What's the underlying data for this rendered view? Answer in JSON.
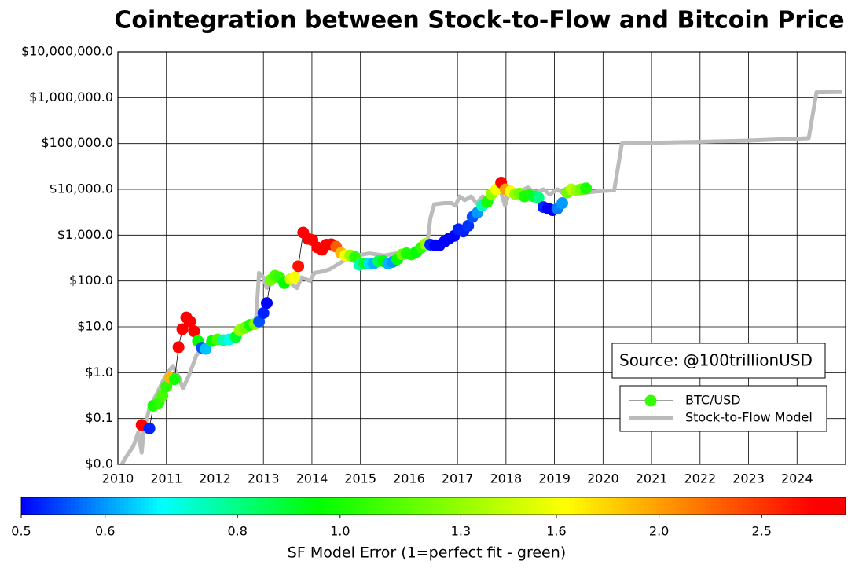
{
  "chart_data": {
    "type": "scatter",
    "title": "Cointegration between Stock-to-Flow and Bitcoin Price",
    "annotation": "Source: @100trillionUSD",
    "ylog": true,
    "grid": true,
    "legend": "lower right",
    "xlim": [
      2010,
      2025
    ],
    "xticks": [
      2010,
      2011,
      2012,
      2013,
      2014,
      2015,
      2016,
      2017,
      2018,
      2019,
      2020,
      2021,
      2022,
      2023,
      2024
    ],
    "ylim": [
      0.01,
      10000000
    ],
    "yticks": [
      {
        "value": 0.01,
        "label": "$0.0"
      },
      {
        "value": 0.1,
        "label": "$0.1"
      },
      {
        "value": 1,
        "label": "$1.0"
      },
      {
        "value": 10,
        "label": "$10.0"
      },
      {
        "value": 100,
        "label": "$100.0"
      },
      {
        "value": 1000,
        "label": "$1,000.0"
      },
      {
        "value": 10000,
        "label": "$10,000.0"
      },
      {
        "value": 100000,
        "label": "$100,000.0"
      },
      {
        "value": 1000000,
        "label": "$1,000,000.0"
      },
      {
        "value": 10000000,
        "label": "$10,000,000.0"
      }
    ],
    "colorbar": {
      "label": "SF Model Error (1=perfect fit - green)",
      "log": true,
      "lim": [
        0.5,
        3.0
      ],
      "ticks": [
        0.5,
        0.6,
        0.8,
        {
          "value": 1,
          "label": "1.0"
        },
        1.3,
        1.6,
        {
          "value": 2,
          "label": "2.0"
        },
        2.5
      ],
      "colors": [
        "#0000ff",
        "#00ffff",
        "#00ff00",
        "#ffff00",
        "#ff0000"
      ]
    },
    "series": [
      {
        "name": "BTC/USD",
        "color": "#000000",
        "x": [
          2010.49,
          2010.65,
          2010.73,
          2010.84,
          2010.92,
          2011.0,
          2011.08,
          2011.17,
          2011.25,
          2011.33,
          2011.41,
          2011.49,
          2011.57,
          2011.65,
          2011.73,
          2011.81,
          2011.94,
          2012.05,
          2012.18,
          2012.3,
          2012.43,
          2012.51,
          2012.62,
          2012.72,
          2012.82,
          2012.91,
          2013.0,
          2013.07,
          2013.15,
          2013.24,
          2013.33,
          2013.43,
          2013.56,
          2013.64,
          2013.72,
          2013.82,
          2013.92,
          2014.01,
          2014.11,
          2014.21,
          2014.3,
          2014.4,
          2014.5,
          2014.6,
          2014.69,
          2014.79,
          2014.89,
          2014.98,
          2015.08,
          2015.18,
          2015.27,
          2015.37,
          2015.47,
          2015.57,
          2015.66,
          2015.76,
          2015.86,
          2015.95,
          2016.05,
          2016.15,
          2016.25,
          2016.34,
          2016.44,
          2016.54,
          2016.63,
          2016.73,
          2016.83,
          2016.93,
          2017.02,
          2017.12,
          2017.22,
          2017.31,
          2017.41,
          2017.51,
          2017.61,
          2017.7,
          2017.8,
          2017.9,
          2017.99,
          2018.09,
          2018.19,
          2018.28,
          2018.38,
          2018.48,
          2018.58,
          2018.67,
          2018.77,
          2018.87,
          2018.96,
          2019.06,
          2019.16,
          2019.26,
          2019.35,
          2019.45,
          2019.55,
          2019.65
        ],
        "values": [
          0.072,
          0.061,
          0.19,
          0.22,
          0.32,
          0.5,
          0.77,
          0.72,
          3.6,
          8.9,
          16,
          13,
          8,
          4.9,
          3.5,
          3.3,
          4.9,
          5.3,
          5.1,
          5.3,
          6,
          8.4,
          9.5,
          11,
          11.5,
          13,
          20,
          33,
          105,
          130,
          120,
          90,
          110,
          120,
          210,
          1140,
          830,
          780,
          540,
          480,
          620,
          630,
          560,
          410,
          360,
          360,
          330,
          225,
          240,
          240,
          240,
          270,
          270,
          240,
          260,
          300,
          380,
          400,
          380,
          430,
          530,
          640,
          620,
          600,
          600,
          720,
          850,
          960,
          1340,
          1200,
          1600,
          2500,
          3100,
          4400,
          5300,
          7900,
          10000,
          14000,
          10000,
          9000,
          7900,
          8100,
          7000,
          7500,
          7000,
          6600,
          4100,
          3800,
          3500,
          3800,
          5000,
          8500,
          10000,
          9500,
          10000,
          10500
        ],
        "errors": [
          2.8,
          0.52,
          1.0,
          1.05,
          1.1,
          1.05,
          1.9,
          1.0,
          2.8,
          2.8,
          2.8,
          2.8,
          2.8,
          0.95,
          0.55,
          0.63,
          0.95,
          1.1,
          0.75,
          0.7,
          0.9,
          1.3,
          1.2,
          1.0,
          1.25,
          0.55,
          0.52,
          0.5,
          1.2,
          1.1,
          1.05,
          0.95,
          1.5,
          1.6,
          2.7,
          2.9,
          2.9,
          2.9,
          2.8,
          2.8,
          2.8,
          2.8,
          2.3,
          1.9,
          1.6,
          1.3,
          1.05,
          0.75,
          0.9,
          0.65,
          0.62,
          0.85,
          0.95,
          0.62,
          0.6,
          0.95,
          1.2,
          1.0,
          1.0,
          0.95,
          1.05,
          1.3,
          0.52,
          0.5,
          0.5,
          0.5,
          0.5,
          0.5,
          0.52,
          0.52,
          0.53,
          0.55,
          0.6,
          0.75,
          1.0,
          1.3,
          1.6,
          2.9,
          2.0,
          1.6,
          1.3,
          1.2,
          1.0,
          1.0,
          0.9,
          0.8,
          0.52,
          0.5,
          0.5,
          0.58,
          0.6,
          1.2,
          1.4,
          1.3,
          1.2,
          1.0
        ]
      },
      {
        "name": "Stock-to-Flow Model",
        "color": "#bbbbbb",
        "x": [
          2010.08,
          2010.16,
          2010.32,
          2010.42,
          2010.49,
          2010.53,
          2010.65,
          2010.81,
          2010.97,
          2011.13,
          2011.26,
          2011.34,
          2011.46,
          2011.62,
          2011.78,
          2011.94,
          2012.18,
          2012.43,
          2012.67,
          2012.85,
          2012.91,
          2013.0,
          2013.07,
          2013.24,
          2013.4,
          2013.56,
          2013.69,
          2013.79,
          2013.96,
          2014.05,
          2014.21,
          2014.37,
          2014.53,
          2014.69,
          2014.94,
          2015.18,
          2015.5,
          2015.74,
          2015.99,
          2016.23,
          2016.39,
          2016.44,
          2016.52,
          2016.72,
          2016.88,
          2016.96,
          2017.04,
          2017.15,
          2017.28,
          2017.39,
          2017.52,
          2017.69,
          2017.85,
          2017.98,
          2018.09,
          2018.25,
          2018.45,
          2018.58,
          2018.77,
          2018.9,
          2019.06,
          2019.22,
          2019.39,
          2019.55,
          2019.87,
          2020.23,
          2020.39,
          2021.33,
          2022.94,
          2024.24,
          2024.4,
          2024.92
        ],
        "values": [
          0.01,
          0.014,
          0.025,
          0.05,
          0.018,
          0.05,
          0.17,
          0.36,
          0.8,
          1.4,
          0.8,
          0.45,
          0.85,
          2.4,
          3.8,
          4.6,
          5.3,
          6,
          8.5,
          15,
          150,
          120,
          70,
          110,
          90,
          90,
          70,
          120,
          100,
          150,
          160,
          180,
          230,
          290,
          360,
          400,
          360,
          400,
          430,
          530,
          790,
          2300,
          4700,
          5000,
          5000,
          4400,
          7000,
          5800,
          7000,
          5000,
          7000,
          5000,
          12600,
          4400,
          10000,
          8500,
          11000,
          8500,
          10000,
          7700,
          10000,
          7700,
          9000,
          8200,
          9000,
          9500,
          100000,
          105000,
          115000,
          130000,
          1300000,
          1330000
        ]
      }
    ]
  }
}
